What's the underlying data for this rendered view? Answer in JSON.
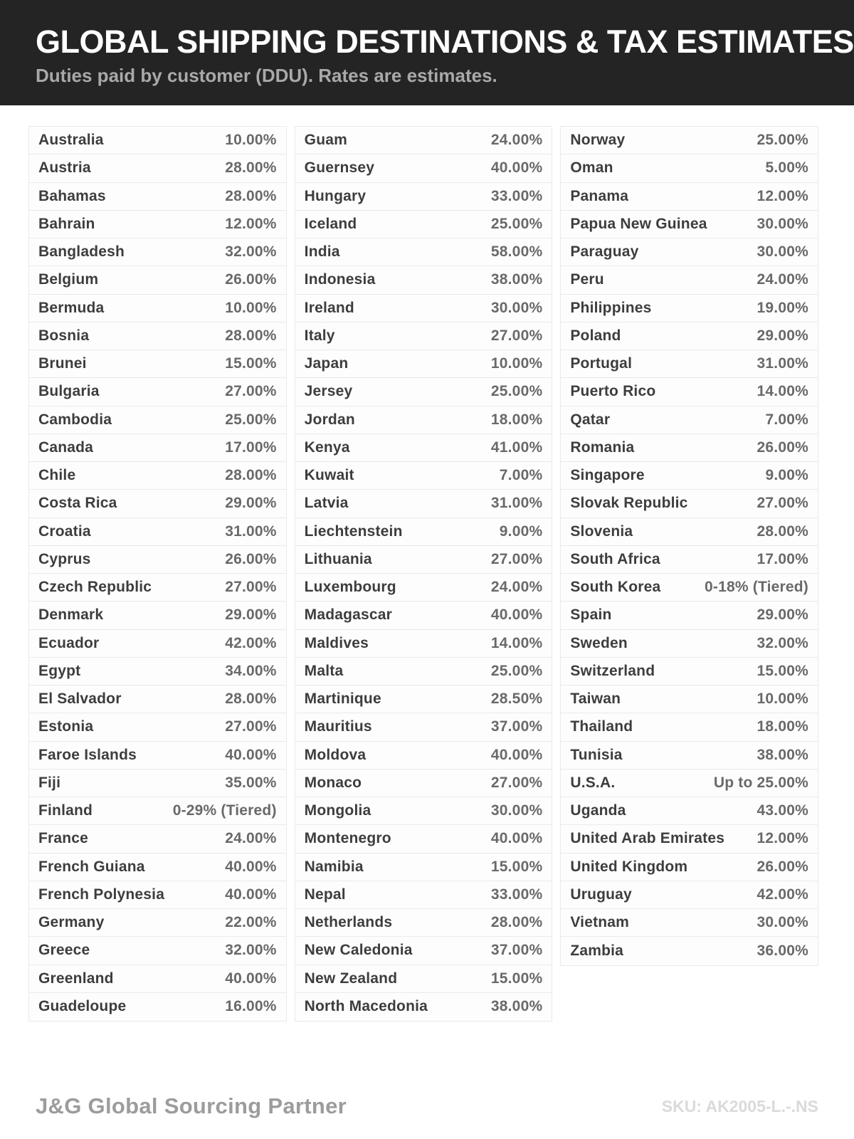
{
  "header": {
    "title": "GLOBAL SHIPPING DESTINATIONS & TAX ESTIMATES",
    "subtitle": "Duties paid by customer (DDU). Rates are estimates."
  },
  "table": {
    "columns": [
      {
        "rows": [
          {
            "country": "Australia",
            "rate": "10.00%"
          },
          {
            "country": "Austria",
            "rate": "28.00%"
          },
          {
            "country": "Bahamas",
            "rate": "28.00%"
          },
          {
            "country": "Bahrain",
            "rate": "12.00%"
          },
          {
            "country": "Bangladesh",
            "rate": "32.00%"
          },
          {
            "country": "Belgium",
            "rate": "26.00%"
          },
          {
            "country": "Bermuda",
            "rate": "10.00%"
          },
          {
            "country": "Bosnia",
            "rate": "28.00%"
          },
          {
            "country": "Brunei",
            "rate": "15.00%"
          },
          {
            "country": "Bulgaria",
            "rate": "27.00%"
          },
          {
            "country": "Cambodia",
            "rate": "25.00%"
          },
          {
            "country": "Canada",
            "rate": "17.00%"
          },
          {
            "country": "Chile",
            "rate": "28.00%"
          },
          {
            "country": "Costa Rica",
            "rate": "29.00%"
          },
          {
            "country": "Croatia",
            "rate": "31.00%"
          },
          {
            "country": "Cyprus",
            "rate": "26.00%"
          },
          {
            "country": "Czech Republic",
            "rate": "27.00%"
          },
          {
            "country": "Denmark",
            "rate": "29.00%"
          },
          {
            "country": "Ecuador",
            "rate": "42.00%"
          },
          {
            "country": "Egypt",
            "rate": "34.00%"
          },
          {
            "country": "El Salvador",
            "rate": "28.00%"
          },
          {
            "country": "Estonia",
            "rate": "27.00%"
          },
          {
            "country": "Faroe Islands",
            "rate": "40.00%"
          },
          {
            "country": "Fiji",
            "rate": "35.00%"
          },
          {
            "country": "Finland",
            "rate": "0-29% (Tiered)"
          },
          {
            "country": "France",
            "rate": "24.00%"
          },
          {
            "country": "French Guiana",
            "rate": "40.00%"
          },
          {
            "country": "French Polynesia",
            "rate": "40.00%"
          },
          {
            "country": "Germany",
            "rate": "22.00%"
          },
          {
            "country": "Greece",
            "rate": "32.00%"
          },
          {
            "country": "Greenland",
            "rate": "40.00%"
          },
          {
            "country": "Guadeloupe",
            "rate": "16.00%"
          }
        ]
      },
      {
        "rows": [
          {
            "country": "Guam",
            "rate": "24.00%"
          },
          {
            "country": "Guernsey",
            "rate": "40.00%"
          },
          {
            "country": "Hungary",
            "rate": "33.00%"
          },
          {
            "country": "Iceland",
            "rate": "25.00%"
          },
          {
            "country": "India",
            "rate": "58.00%"
          },
          {
            "country": "Indonesia",
            "rate": "38.00%"
          },
          {
            "country": "Ireland",
            "rate": "30.00%"
          },
          {
            "country": "Italy",
            "rate": "27.00%"
          },
          {
            "country": "Japan",
            "rate": "10.00%"
          },
          {
            "country": "Jersey",
            "rate": "25.00%"
          },
          {
            "country": "Jordan",
            "rate": "18.00%"
          },
          {
            "country": "Kenya",
            "rate": "41.00%"
          },
          {
            "country": "Kuwait",
            "rate": "7.00%"
          },
          {
            "country": "Latvia",
            "rate": "31.00%"
          },
          {
            "country": "Liechtenstein",
            "rate": "9.00%"
          },
          {
            "country": "Lithuania",
            "rate": "27.00%"
          },
          {
            "country": "Luxembourg",
            "rate": "24.00%"
          },
          {
            "country": "Madagascar",
            "rate": "40.00%"
          },
          {
            "country": "Maldives",
            "rate": "14.00%"
          },
          {
            "country": "Malta",
            "rate": "25.00%"
          },
          {
            "country": "Martinique",
            "rate": "28.50%"
          },
          {
            "country": "Mauritius",
            "rate": "37.00%"
          },
          {
            "country": "Moldova",
            "rate": "40.00%"
          },
          {
            "country": "Monaco",
            "rate": "27.00%"
          },
          {
            "country": "Mongolia",
            "rate": "30.00%"
          },
          {
            "country": "Montenegro",
            "rate": "40.00%"
          },
          {
            "country": "Namibia",
            "rate": "15.00%"
          },
          {
            "country": "Nepal",
            "rate": "33.00%"
          },
          {
            "country": "Netherlands",
            "rate": "28.00%"
          },
          {
            "country": "New Caledonia",
            "rate": "37.00%"
          },
          {
            "country": "New Zealand",
            "rate": "15.00%"
          },
          {
            "country": "North Macedonia",
            "rate": "38.00%"
          }
        ]
      },
      {
        "rows": [
          {
            "country": "Norway",
            "rate": "25.00%"
          },
          {
            "country": "Oman",
            "rate": "5.00%"
          },
          {
            "country": "Panama",
            "rate": "12.00%"
          },
          {
            "country": "Papua New Guinea",
            "rate": "30.00%"
          },
          {
            "country": "Paraguay",
            "rate": "30.00%"
          },
          {
            "country": "Peru",
            "rate": "24.00%"
          },
          {
            "country": "Philippines",
            "rate": "19.00%"
          },
          {
            "country": "Poland",
            "rate": "29.00%"
          },
          {
            "country": "Portugal",
            "rate": "31.00%"
          },
          {
            "country": "Puerto Rico",
            "rate": "14.00%"
          },
          {
            "country": "Qatar",
            "rate": "7.00%"
          },
          {
            "country": "Romania",
            "rate": "26.00%"
          },
          {
            "country": "Singapore",
            "rate": "9.00%"
          },
          {
            "country": "Slovak Republic",
            "rate": "27.00%"
          },
          {
            "country": "Slovenia",
            "rate": "28.00%"
          },
          {
            "country": "South Africa",
            "rate": "17.00%"
          },
          {
            "country": "South Korea",
            "rate": "0-18% (Tiered)"
          },
          {
            "country": "Spain",
            "rate": "29.00%"
          },
          {
            "country": "Sweden",
            "rate": "32.00%"
          },
          {
            "country": "Switzerland",
            "rate": "15.00%"
          },
          {
            "country": "Taiwan",
            "rate": "10.00%"
          },
          {
            "country": "Thailand",
            "rate": "18.00%"
          },
          {
            "country": "Tunisia",
            "rate": "38.00%"
          },
          {
            "country": "U.S.A.",
            "rate": "Up to 25.00%"
          },
          {
            "country": "Uganda",
            "rate": "43.00%"
          },
          {
            "country": "United Arab Emirates",
            "rate": "12.00%"
          },
          {
            "country": "United Kingdom",
            "rate": "26.00%"
          },
          {
            "country": "Uruguay",
            "rate": "42.00%"
          },
          {
            "country": "Vietnam",
            "rate": "30.00%"
          },
          {
            "country": "Zambia",
            "rate": "36.00%"
          }
        ]
      }
    ]
  },
  "footer": {
    "brand": "J&G Global Sourcing Partner",
    "sku": "SKU: AK2005-L.-.NS"
  },
  "colors": {
    "header_bg": "#242424",
    "title_color": "#ffffff",
    "subtitle_color": "#a9a9a9",
    "cell_bg": "#fdfdfd",
    "row_border": "#eaeaea",
    "country_color": "#3d3d3d",
    "rate_color": "#696969",
    "brand_color": "#9c9c9c",
    "sku_color": "#dadada"
  }
}
